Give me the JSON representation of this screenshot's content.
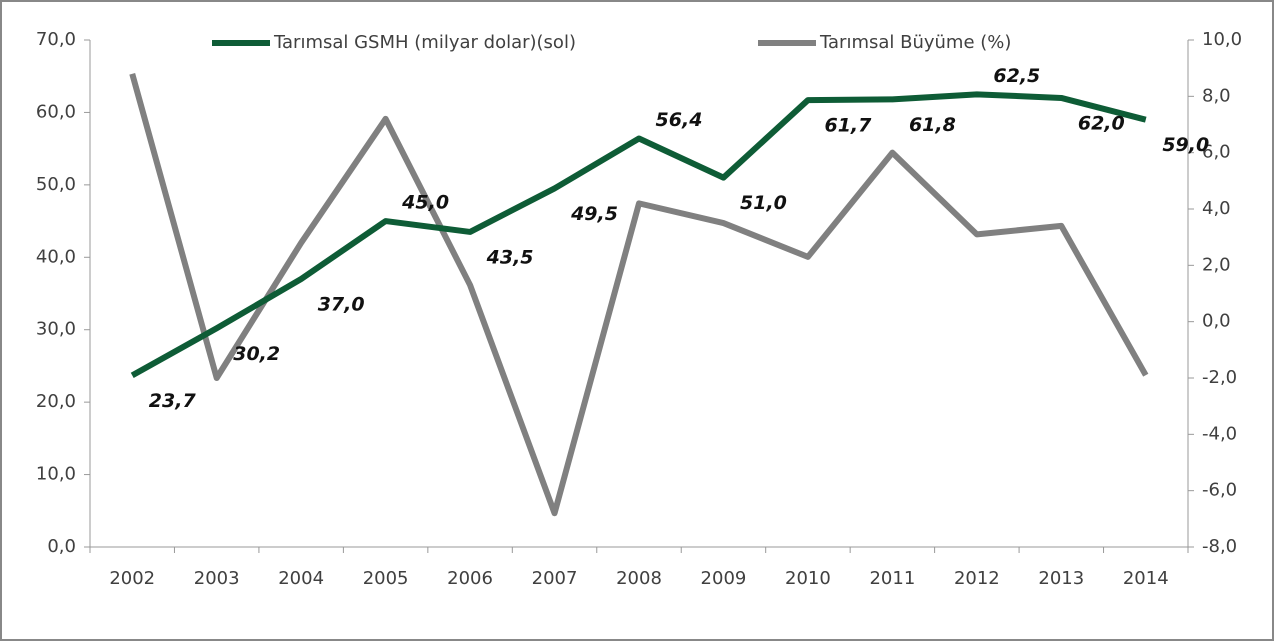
{
  "chart_data": {
    "type": "line",
    "categories": [
      "2002",
      "2003",
      "2004",
      "2005",
      "2006",
      "2007",
      "2008",
      "2009",
      "2010",
      "2011",
      "2012",
      "2013",
      "2014"
    ],
    "series": [
      {
        "name": "Tarımsal GSMH (milyar dolar)(sol)",
        "color": "#0e5c36",
        "values": [
          23.7,
          30.2,
          37.0,
          45.0,
          43.5,
          49.5,
          56.4,
          51.0,
          61.7,
          61.8,
          62.5,
          62.0,
          59.0
        ],
        "value_labels": [
          "23,7",
          "30,2",
          "37,0",
          "45,0",
          "43,5",
          "49,5",
          "56,4",
          "51,0",
          "61,7",
          "61,8",
          "62,5",
          "62,0",
          "59,0"
        ]
      },
      {
        "name": "Tarımsal Büyüme (%)",
        "color": "#808080",
        "axis": "y2",
        "values": [
          8.8,
          -2.0,
          2.8,
          7.2,
          1.3,
          -6.8,
          4.2,
          3.5,
          2.3,
          6.0,
          3.1,
          3.4,
          -1.9
        ]
      }
    ],
    "ylim": [
      0,
      70
    ],
    "yticks": [
      {
        "value": 0,
        "label": "0,0"
      },
      {
        "value": 10,
        "label": "10,0"
      },
      {
        "value": 20,
        "label": "20,0"
      },
      {
        "value": 30,
        "label": "30,0"
      },
      {
        "value": 40,
        "label": "40,0"
      },
      {
        "value": 50,
        "label": "50,0"
      },
      {
        "value": 60,
        "label": "60,0"
      },
      {
        "value": 70,
        "label": "70,0"
      }
    ],
    "y2lim": [
      -8,
      10
    ],
    "y2ticks": [
      {
        "value": -8,
        "label": "-8,0"
      },
      {
        "value": -6,
        "label": "-6,0"
      },
      {
        "value": -4,
        "label": "-4,0"
      },
      {
        "value": -2,
        "label": "-2,0"
      },
      {
        "value": 0,
        "label": "0,0"
      },
      {
        "value": 2,
        "label": "2,0"
      },
      {
        "value": 4,
        "label": "4,0"
      },
      {
        "value": 6,
        "label": "6,0"
      },
      {
        "value": 8,
        "label": "8,0"
      },
      {
        "value": 10,
        "label": "10,0"
      }
    ],
    "legend": "top"
  }
}
